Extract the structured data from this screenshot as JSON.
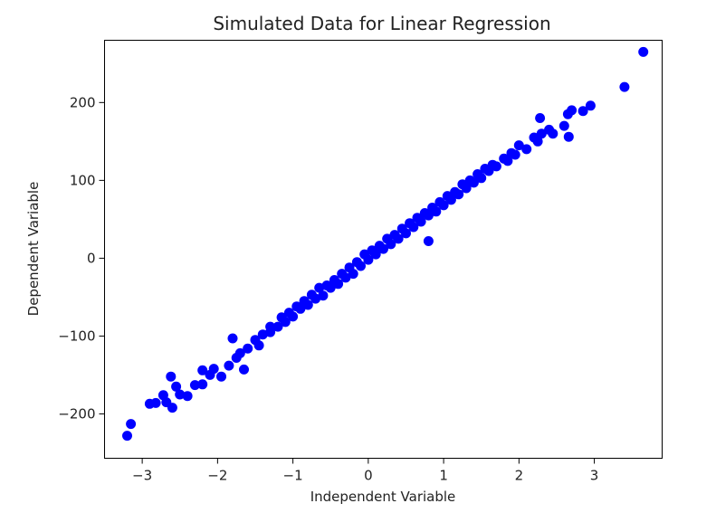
{
  "chart_data": {
    "type": "scatter",
    "title": "Simulated Data for Linear Regression",
    "xlabel": "Independent Variable",
    "ylabel": "Dependent Variable",
    "xlim": [
      -3.5,
      3.9
    ],
    "ylim": [
      -257,
      280
    ],
    "xticks": [
      -3,
      -2,
      -1,
      0,
      1,
      2,
      3
    ],
    "yticks": [
      -200,
      -100,
      0,
      100,
      200
    ],
    "xtick_labels": [
      "−3",
      "−2",
      "−1",
      "0",
      "1",
      "2",
      "3"
    ],
    "ytick_labels": [
      "−200",
      "−100",
      "0",
      "100",
      "200"
    ],
    "grid": false,
    "marker_color": "#0000ff",
    "series": [
      {
        "points": [
          [
            -3.2,
            -228
          ],
          [
            -3.15,
            -213
          ],
          [
            -2.9,
            -187
          ],
          [
            -2.82,
            -186
          ],
          [
            -2.72,
            -176
          ],
          [
            -2.68,
            -185
          ],
          [
            -2.62,
            -152
          ],
          [
            -2.6,
            -192
          ],
          [
            -2.55,
            -165
          ],
          [
            -2.5,
            -175
          ],
          [
            -2.4,
            -177
          ],
          [
            -2.3,
            -163
          ],
          [
            -2.2,
            -162
          ],
          [
            -2.2,
            -144
          ],
          [
            -2.1,
            -150
          ],
          [
            -2.05,
            -142
          ],
          [
            -1.95,
            -152
          ],
          [
            -1.85,
            -138
          ],
          [
            -1.8,
            -103
          ],
          [
            -1.75,
            -128
          ],
          [
            -1.7,
            -122
          ],
          [
            -1.65,
            -143
          ],
          [
            -1.6,
            -116
          ],
          [
            -1.5,
            -105
          ],
          [
            -1.45,
            -112
          ],
          [
            -1.4,
            -98
          ],
          [
            -1.3,
            -95
          ],
          [
            -1.3,
            -88
          ],
          [
            -1.2,
            -88
          ],
          [
            -1.15,
            -76
          ],
          [
            -1.1,
            -82
          ],
          [
            -1.05,
            -70
          ],
          [
            -1.0,
            -75
          ],
          [
            -0.95,
            -62
          ],
          [
            -0.9,
            -65
          ],
          [
            -0.85,
            -55
          ],
          [
            -0.8,
            -60
          ],
          [
            -0.75,
            -47
          ],
          [
            -0.7,
            -52
          ],
          [
            -0.65,
            -38
          ],
          [
            -0.6,
            -48
          ],
          [
            -0.55,
            -35
          ],
          [
            -0.5,
            -38
          ],
          [
            -0.45,
            -28
          ],
          [
            -0.4,
            -33
          ],
          [
            -0.35,
            -20
          ],
          [
            -0.3,
            -25
          ],
          [
            -0.25,
            -12
          ],
          [
            -0.2,
            -20
          ],
          [
            -0.15,
            -5
          ],
          [
            -0.1,
            -10
          ],
          [
            -0.05,
            5
          ],
          [
            0.0,
            -2
          ],
          [
            0.05,
            10
          ],
          [
            0.1,
            5
          ],
          [
            0.15,
            16
          ],
          [
            0.2,
            12
          ],
          [
            0.25,
            25
          ],
          [
            0.3,
            18
          ],
          [
            0.35,
            30
          ],
          [
            0.4,
            25
          ],
          [
            0.45,
            38
          ],
          [
            0.5,
            32
          ],
          [
            0.55,
            45
          ],
          [
            0.6,
            40
          ],
          [
            0.65,
            52
          ],
          [
            0.7,
            47
          ],
          [
            0.75,
            58
          ],
          [
            0.8,
            55
          ],
          [
            0.85,
            65
          ],
          [
            0.8,
            22
          ],
          [
            0.9,
            60
          ],
          [
            0.95,
            72
          ],
          [
            1.0,
            68
          ],
          [
            1.05,
            80
          ],
          [
            1.1,
            75
          ],
          [
            1.15,
            85
          ],
          [
            1.2,
            82
          ],
          [
            1.25,
            95
          ],
          [
            1.3,
            90
          ],
          [
            1.35,
            100
          ],
          [
            1.4,
            97
          ],
          [
            1.45,
            108
          ],
          [
            1.5,
            103
          ],
          [
            1.55,
            115
          ],
          [
            1.6,
            112
          ],
          [
            1.65,
            120
          ],
          [
            1.7,
            118
          ],
          [
            1.8,
            128
          ],
          [
            1.85,
            125
          ],
          [
            1.9,
            135
          ],
          [
            1.95,
            133
          ],
          [
            2.0,
            145
          ],
          [
            2.1,
            140
          ],
          [
            2.2,
            155
          ],
          [
            2.25,
            150
          ],
          [
            2.3,
            160
          ],
          [
            2.28,
            180
          ],
          [
            2.4,
            165
          ],
          [
            2.45,
            160
          ],
          [
            2.6,
            170
          ],
          [
            2.65,
            185
          ],
          [
            2.7,
            190
          ],
          [
            2.66,
            156
          ],
          [
            2.85,
            189
          ],
          [
            2.95,
            196
          ],
          [
            3.4,
            220
          ],
          [
            3.65,
            265
          ]
        ]
      }
    ]
  }
}
